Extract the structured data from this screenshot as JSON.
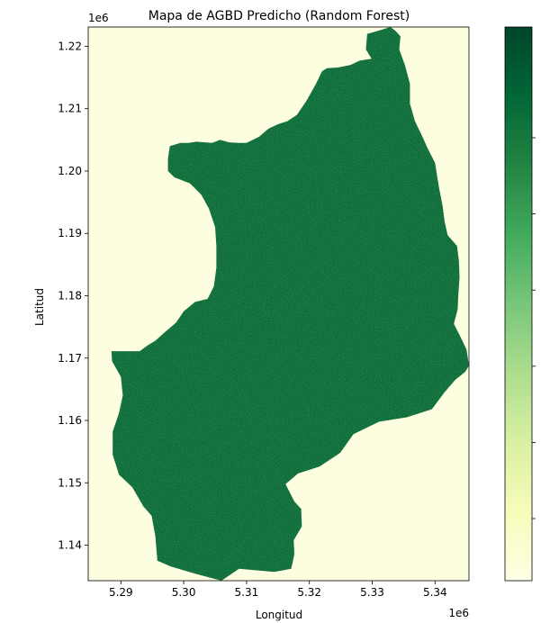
{
  "chart_data": {
    "type": "heatmap",
    "title": "Mapa de AGBD Predicho (Random Forest)",
    "xlabel": "Longitud",
    "ylabel": "Latitud",
    "x_offset_label": "1e6",
    "y_offset_label": "1e6",
    "xlim": [
      5.2848,
      5.3454
    ],
    "ylim": [
      1.1343,
      1.2231
    ],
    "x_ticks": [
      5.29,
      5.3,
      5.31,
      5.32,
      5.33,
      5.34
    ],
    "x_tick_labels": [
      "5.29",
      "5.30",
      "5.31",
      "5.32",
      "5.33",
      "5.34"
    ],
    "y_ticks": [
      1.14,
      1.15,
      1.16,
      1.17,
      1.18,
      1.19,
      1.2,
      1.21,
      1.22
    ],
    "y_tick_labels": [
      "1.14",
      "1.15",
      "1.16",
      "1.17",
      "1.18",
      "1.19",
      "1.20",
      "1.21",
      "1.22"
    ],
    "colormap": "YlGn",
    "colormap_colors": [
      "#ffffe5",
      "#f7fcb9",
      "#d9f0a3",
      "#addd8e",
      "#78c679",
      "#41ab5d",
      "#238443",
      "#006837",
      "#004529"
    ],
    "background_color": "#fdfee0",
    "region_color": "#0b6b36",
    "colorbar_tick_count": 6,
    "colorbar_tick_labels_visible": false,
    "region_outline": [
      [
        5.2848,
        1.1711
      ],
      [
        5.2885,
        1.1711
      ],
      [
        5.2886,
        1.1695
      ],
      [
        5.29,
        1.167
      ],
      [
        5.2903,
        1.164
      ],
      [
        5.2897,
        1.1612
      ],
      [
        5.2887,
        1.1582
      ],
      [
        5.2887,
        1.1545
      ],
      [
        5.2897,
        1.1513
      ],
      [
        5.2918,
        1.1493
      ],
      [
        5.2936,
        1.1462
      ],
      [
        5.2949,
        1.1447
      ],
      [
        5.2955,
        1.1413
      ],
      [
        5.2958,
        1.1375
      ],
      [
        5.2979,
        1.1366
      ],
      [
        5.3019,
        1.1354
      ],
      [
        5.306,
        1.1343
      ],
      [
        5.3088,
        1.1362
      ],
      [
        5.3144,
        1.1357
      ],
      [
        5.3171,
        1.1362
      ],
      [
        5.3176,
        1.1385
      ],
      [
        5.3175,
        1.1408
      ],
      [
        5.3188,
        1.143
      ],
      [
        5.3187,
        1.1458
      ],
      [
        5.3176,
        1.147
      ],
      [
        5.3162,
        1.1498
      ],
      [
        5.3182,
        1.1515
      ],
      [
        5.3216,
        1.1526
      ],
      [
        5.3249,
        1.1548
      ],
      [
        5.327,
        1.1578
      ],
      [
        5.3311,
        1.1598
      ],
      [
        5.3355,
        1.1605
      ],
      [
        5.3395,
        1.1618
      ],
      [
        5.3415,
        1.1645
      ],
      [
        5.3432,
        1.1665
      ],
      [
        5.3448,
        1.1678
      ],
      [
        5.3454,
        1.1688
      ],
      [
        5.345,
        1.1714
      ],
      [
        5.344,
        1.1735
      ],
      [
        5.343,
        1.1755
      ],
      [
        5.3436,
        1.1778
      ],
      [
        5.3437,
        1.18
      ],
      [
        5.3439,
        1.183
      ],
      [
        5.3438,
        1.1856
      ],
      [
        5.3435,
        1.188
      ],
      [
        5.342,
        1.1897
      ],
      [
        5.3415,
        1.192
      ],
      [
        5.3412,
        1.1944
      ],
      [
        5.3406,
        1.1975
      ],
      [
        5.34,
        1.2013
      ],
      [
        5.3388,
        1.2037
      ],
      [
        5.338,
        1.2055
      ],
      [
        5.3368,
        1.208
      ],
      [
        5.336,
        1.2108
      ],
      [
        5.336,
        1.214
      ],
      [
        5.3352,
        1.217
      ],
      [
        5.3343,
        1.2195
      ],
      [
        5.3345,
        1.2216
      ],
      [
        5.3337,
        1.2225
      ],
      [
        5.3329,
        1.2231
      ],
      [
        5.3307,
        1.2224
      ],
      [
        5.3292,
        1.222
      ],
      [
        5.329,
        1.2195
      ],
      [
        5.3299,
        1.218
      ],
      [
        5.328,
        1.2177
      ],
      [
        5.3265,
        1.217
      ],
      [
        5.3245,
        1.2166
      ],
      [
        5.3228,
        1.2165
      ],
      [
        5.322,
        1.216
      ],
      [
        5.321,
        1.2139
      ],
      [
        5.3195,
        1.2112
      ],
      [
        5.318,
        1.209
      ],
      [
        5.3165,
        1.208
      ],
      [
        5.315,
        1.2075
      ],
      [
        5.3135,
        1.2068
      ],
      [
        5.312,
        1.2055
      ],
      [
        5.31,
        1.2045
      ],
      [
        5.3087,
        1.2045
      ],
      [
        5.3072,
        1.2046
      ],
      [
        5.3058,
        1.205
      ],
      [
        5.3045,
        1.2045
      ],
      [
        5.302,
        1.2047
      ],
      [
        5.3008,
        1.2045
      ],
      [
        5.2995,
        1.2045
      ],
      [
        5.2978,
        1.204
      ],
      [
        5.2975,
        1.202
      ],
      [
        5.2975,
        1.2
      ],
      [
        5.2985,
        1.199
      ],
      [
        5.301,
        1.198
      ],
      [
        5.3028,
        1.1962
      ],
      [
        5.304,
        1.194
      ],
      [
        5.305,
        1.191
      ],
      [
        5.3052,
        1.188
      ],
      [
        5.3052,
        1.1845
      ],
      [
        5.3048,
        1.1815
      ],
      [
        5.3038,
        1.1795
      ],
      [
        5.3018,
        1.179
      ],
      [
        5.3,
        1.1775
      ],
      [
        5.2988,
        1.1757
      ],
      [
        5.2968,
        1.174
      ],
      [
        5.2955,
        1.1728
      ],
      [
        5.2942,
        1.172
      ],
      [
        5.293,
        1.1711
      ],
      [
        5.2848,
        1.1711
      ]
    ]
  }
}
